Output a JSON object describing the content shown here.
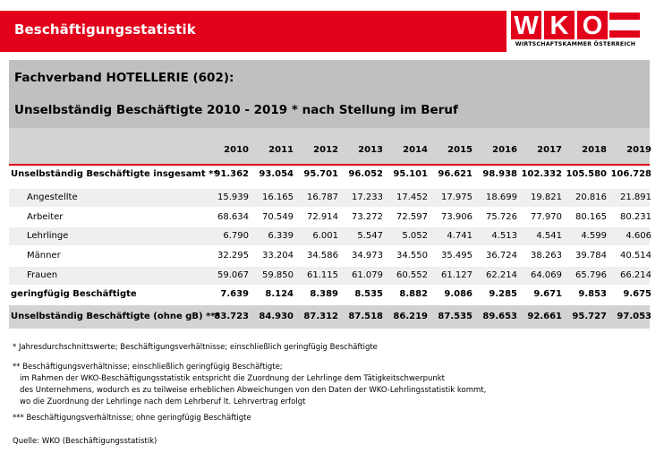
{
  "header": {
    "title": "Beschäftigungsstatistik",
    "logo_letters": "WKO",
    "logo_subtitle": "WIRTSCHAFTSKAMMER ÖSTERREICH",
    "brand_color": "#e2001a"
  },
  "section": {
    "fachverband": "Fachverband HOTELLERIE (602):",
    "title": "Unselbständig Beschäftigte 2010 - 2019 * nach Stellung im Beruf"
  },
  "table": {
    "years": [
      "2010",
      "2011",
      "2012",
      "2013",
      "2014",
      "2015",
      "2016",
      "2017",
      "2018",
      "2019"
    ],
    "rows": [
      {
        "label": "Unselbständig Beschäftigte insgesamt **",
        "values": [
          "91.362",
          "93.054",
          "95.701",
          "96.052",
          "95.101",
          "96.621",
          "98.938",
          "102.332",
          "105.580",
          "106.728"
        ]
      },
      {
        "label": "Angestellte",
        "values": [
          "15.939",
          "16.165",
          "16.787",
          "17.233",
          "17.452",
          "17.975",
          "18.699",
          "19.821",
          "20.816",
          "21.891"
        ]
      },
      {
        "label": "Arbeiter",
        "values": [
          "68.634",
          "70.549",
          "72.914",
          "73.272",
          "72.597",
          "73.906",
          "75.726",
          "77.970",
          "80.165",
          "80.231"
        ]
      },
      {
        "label": "Lehrlinge",
        "values": [
          "6.790",
          "6.339",
          "6.001",
          "5.547",
          "5.052",
          "4.741",
          "4.513",
          "4.541",
          "4.599",
          "4.606"
        ]
      },
      {
        "label": "Männer",
        "values": [
          "32.295",
          "33.204",
          "34.586",
          "34.973",
          "34.550",
          "35.495",
          "36.724",
          "38.263",
          "39.784",
          "40.514"
        ]
      },
      {
        "label": "Frauen",
        "values": [
          "59.067",
          "59.850",
          "61.115",
          "61.079",
          "60.552",
          "61.127",
          "62.214",
          "64.069",
          "65.796",
          "66.214"
        ]
      },
      {
        "label": "geringfügig Beschäftigte",
        "values": [
          "7.639",
          "8.124",
          "8.389",
          "8.535",
          "8.882",
          "9.086",
          "9.285",
          "9.671",
          "9.853",
          "9.675"
        ]
      },
      {
        "label": "Unselbständig Beschäftigte (ohne gB) ***",
        "values": [
          "83.723",
          "84.930",
          "87.312",
          "87.518",
          "86.219",
          "87.535",
          "89.653",
          "92.661",
          "95.727",
          "97.053"
        ]
      }
    ]
  },
  "footnotes": {
    "note1": "* Jahresdurchschnittswerte; Beschäftigungsverhältnisse; einschließlich geringfügig Beschäftigte",
    "note2_lines": [
      "** Beschäftigungsverhältnisse; einschließlich geringfügig Beschäftigte;",
      "im Rahmen der WKO-Beschäftigungsstatistik entspricht die Zuordnung der Lehrlinge dem Tätigkeitschwerpunkt",
      "des Unternehmens, wodurch es zu teilweise erheblichen Abweichungen von den Daten der WKO-Lehrlingsstatistik kommt,",
      "wo die Zuordnung der Lehrlinge nach dem Lehrberuf lt. Lehrvertrag erfolgt"
    ],
    "note3": "*** Beschäftigungsverhältnisse; ohne geringfügig Beschäftigte",
    "source": "Quelle: WKO (Beschäftigungsstatistik)"
  }
}
